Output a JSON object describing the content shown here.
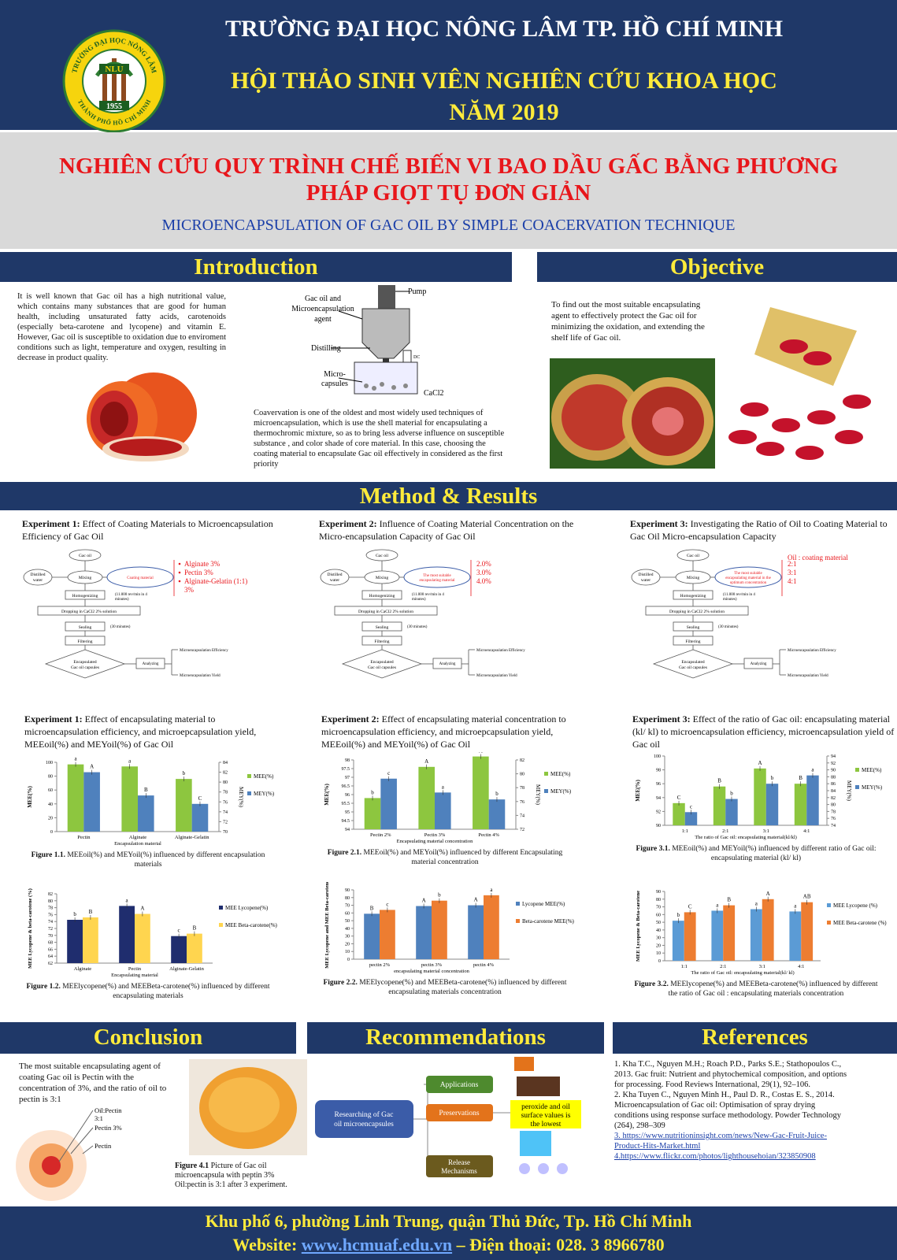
{
  "header": {
    "university": "TRƯỜNG ĐẠI HỌC NÔNG LÂM TP. HỒ CHÍ MINH",
    "event_line1": "HỘI THẢO SINH VIÊN NGHIÊN CỨU KHOA HỌC",
    "event_line2": "NĂM 2019"
  },
  "logo": {
    "top": "TRƯỜNG ĐẠI HỌC NÔNG LÂM",
    "bottom": "THÀNH PHỐ HỒ CHÍ MINH",
    "abbr": "NLU",
    "year": "1955"
  },
  "title": {
    "line1": "NGHIÊN CỨU QUY TRÌNH CHẾ BIẾN VI BAO DẦU GẤC BẰNG PHƯƠNG",
    "line2": "PHÁP GIỌT TỤ ĐƠN GIẢN",
    "subtitle": "MICROENCAPSULATION OF GAC OIL BY SIMPLE COACERVATION TECHNIQUE"
  },
  "introduction": {
    "heading": "Introduction",
    "paragraph1": "It is well known that Gac oil has a high nutritional value, which contains many substances that are good for human health, including unsaturated fatty acids, carotenoids (especially beta-carotene and lycopene) and vitamin E. However, Gac oil is susceptible to oxidation due to enviroment conditions such as light, temperature and oxygen, resulting in decrease in product quality.",
    "paragraph2": "Coavervation  is one of the oldest and most widely used techniques of microencapsulation, which is use the shell material for encapsulating a thermochromic  mixture, so as to bring less adverse influence on susceptible substance , and color shade of core material. In this case, choosing the coating material to encapsulate Gac oil effectively in considered as the first priority",
    "apparatus": {
      "pump": "Pump",
      "feed": [
        "Gac oil and",
        "Microencapsulation",
        "agent"
      ],
      "distilling": "Distilling",
      "capsules": [
        "Micro-",
        "capsules"
      ],
      "dc": "DC",
      "cacl2": "CaCl2"
    }
  },
  "objective": {
    "heading": "Objective",
    "text": "To find out the most suitable encapsulating agent to effectively protect the Gac oil for minimizing the oxidation, and extending the shelf life of Gac oil."
  },
  "method": {
    "heading": "Method & Results"
  },
  "flowchart": {
    "gac_oil": "Gac oil",
    "distilled_water": [
      "Distilled",
      "water"
    ],
    "mixing": "Mixing",
    "homogenizing": "Homogenizing",
    "speed_note": [
      "(11.000 rev/min in 4",
      "minutes)"
    ],
    "dropping": "Dropping in CaCl2 2% solution",
    "sealing": "Sealing",
    "sealing_note": "(30 minutes)",
    "filtering": "Filtering",
    "capsules": [
      "Encapsulated",
      "Gac oil capsules"
    ],
    "analyzing": "Analyzing",
    "efficiency": "Microencapsulation Efficiency",
    "yield": "Microencapsulation Yield"
  },
  "experiments": [
    {
      "label": "Experiment 1:",
      "title": "Effect of Coating Materials to Microencapsulation Efficiency of Gac Oil",
      "center": [
        "Coating material"
      ],
      "options": [
        "Alginate 3%",
        "Pectin 3%",
        "Alginate-Gelatin (1:1)",
        "3%"
      ],
      "results_title": "Effect of encapsulating material to microencapsulation efficiency, and microepcapsulation yield, MEEoil(%) and MEYoil(%) of Gac Oil"
    },
    {
      "label": "Experiment 2:",
      "title": "Influence of Coating Material Concentration on the Micro-encapsulation Capacity of Gac Oil",
      "center": [
        "The most suitable",
        "encapsulating material"
      ],
      "options": [
        "2.0%",
        "3.0%",
        "4.0%"
      ],
      "results_title": "Effect of encapsulating material concentration to microencapsulation efficiency, and microepcapsulation yield, MEEoil(%) and MEYoil(%) of Gac Oil"
    },
    {
      "label": "Experiment 3:",
      "title": "Investigating the Ratio of  Oil to Coating Material to Gac Oil Micro-encapsulation Capacity",
      "center": [
        "The most suitable",
        "encapsulating material in the",
        "optimum concentration"
      ],
      "options_title": "Oil : coating material",
      "options": [
        "2:1",
        "3:1",
        "4:1"
      ],
      "results_title": "Effect of the ratio of Gac oil: encapsulating material (kl/ kl) to microencapsulation efficiency, microencapsulation yield of Gac oil"
    }
  ],
  "charts": [
    {
      "type": "bar",
      "figure": "Figure 1.1.",
      "caption": "MEEoil(%) and MEYoil(%) influenced by different encapsulation materials",
      "categories": [
        "Pectin",
        "Alginate",
        "Alginate-Gelatin"
      ],
      "xlabel": "Encapsulation material",
      "ylabel": "MEE(%)",
      "y2label": "MEY(%)",
      "ylim": [
        0,
        100
      ],
      "yticks": [
        0,
        20,
        40,
        60,
        80,
        100
      ],
      "y2lim": [
        70,
        84
      ],
      "y2ticks": [
        70,
        72,
        74,
        76,
        78,
        80,
        82,
        84
      ],
      "series": [
        {
          "name": "MEE(%)",
          "color": "#8dc63f",
          "values": [
            97,
            94,
            76
          ],
          "letters": [
            "a",
            "a",
            "b"
          ]
        },
        {
          "name": "MEY(%)",
          "color": "#4f81bd",
          "axis": "y2",
          "values": [
            82,
            77.3,
            75.6
          ],
          "letters": [
            "A",
            "B",
            "C"
          ]
        }
      ]
    },
    {
      "type": "bar",
      "figure": "Figure 2.1.",
      "caption": "MEEoil(%) and MEYoil(%) influenced by different Encapsulating material concentration",
      "categories": [
        "Pectin 2%",
        "Pectin 3%",
        "Pectin 4%"
      ],
      "xlabel": "Encapsulating material concentration",
      "ylabel": "MEE(%)",
      "y2label": "MEY(%)",
      "ylim": [
        94,
        98
      ],
      "yticks": [
        94,
        94.5,
        95,
        95.5,
        96,
        96.5,
        97,
        97.5,
        98
      ],
      "y2lim": [
        72,
        82
      ],
      "y2ticks": [
        72,
        74,
        76,
        78,
        80,
        82
      ],
      "series": [
        {
          "name": "MEE(%)",
          "color": "#8dc63f",
          "values": [
            95.8,
            97.6,
            98.2
          ],
          "letters": [
            "b",
            "A",
            "A"
          ]
        },
        {
          "name": "MEY(%)",
          "color": "#4f81bd",
          "axis": "y2",
          "values": [
            79.3,
            77.3,
            76.3
          ],
          "letters": [
            "c",
            "a",
            "b"
          ]
        }
      ]
    },
    {
      "type": "bar",
      "figure": "Figure 3.1.",
      "caption": "MEEoil(%) and MEYoil(%) influenced by different ratio of Gac oil: encapsulating material (kl/ kl)",
      "categories": [
        "1:1",
        "2:1",
        "3:1",
        "4:1"
      ],
      "xlabel": "The ratio of Gac oil: encapsulating material(kl/kl)",
      "ylabel": "MEE(%)",
      "y2label": "MEY(%)",
      "ylim": [
        90,
        100
      ],
      "yticks": [
        90,
        92,
        94,
        96,
        98,
        100
      ],
      "y2lim": [
        74,
        94
      ],
      "y2ticks": [
        74,
        76,
        78,
        80,
        82,
        84,
        86,
        88,
        90,
        92,
        94
      ],
      "series": [
        {
          "name": "MEE(%)",
          "color": "#8dc63f",
          "values": [
            93.2,
            95.6,
            98.2,
            96
          ],
          "letters": [
            "C",
            "B",
            "A",
            "B"
          ]
        },
        {
          "name": "MEY(%)",
          "color": "#4f81bd",
          "axis": "y2",
          "values": [
            77.8,
            81.6,
            86,
            88.4
          ],
          "letters": [
            "c",
            "b",
            "b",
            "a"
          ]
        }
      ]
    },
    {
      "type": "bar",
      "figure": "Figure 1.2.",
      "caption": "MEElycopene(%) and MEEBeta-carotene(%) influenced by different encapsulating materials",
      "categories": [
        "Alginate",
        "Pectin",
        "Alginate-Gelatin"
      ],
      "xlabel": "Encapsulating material",
      "ylabel": "MEE Lycopene & beta-carotene (%)",
      "ylim": [
        62,
        82
      ],
      "yticks": [
        62,
        64,
        66,
        68,
        70,
        72,
        74,
        76,
        78,
        80,
        82
      ],
      "series": [
        {
          "name": "MEE Lycopene(%)",
          "color": "#1f2d6e",
          "values": [
            74.5,
            78.5,
            69.8
          ],
          "letters": [
            "b",
            "a",
            "c"
          ]
        },
        {
          "name": "MEE Beta-carotene(%)",
          "color": "#ffd54f",
          "values": [
            75.2,
            76.2,
            70.5
          ],
          "letters": [
            "B",
            "A",
            "B"
          ]
        }
      ]
    },
    {
      "type": "bar",
      "figure": "Figure 2.2.",
      "caption": "MEElycopene(%) and MEEBeta-carotene(%) influenced by different encapsulating materials concentration",
      "categories": [
        "pectin 2%",
        "pectin 3%",
        "pectin 4%"
      ],
      "xlabel": "encapsulating material concentration",
      "ylabel": "MEE Lycopene and MEE Beta-carotene",
      "ylim": [
        0,
        90
      ],
      "yticks": [
        0,
        10,
        20,
        30,
        40,
        50,
        60,
        70,
        80,
        90
      ],
      "series": [
        {
          "name": "Lycopene MEE(%)",
          "color": "#4f81bd",
          "values": [
            59,
            69,
            70
          ],
          "letters": [
            "B",
            "A",
            "A"
          ]
        },
        {
          "name": "Beta-carotene MEE(%)",
          "color": "#ed7d31",
          "values": [
            64,
            76,
            83
          ],
          "letters": [
            "c",
            "b",
            "a"
          ]
        }
      ]
    },
    {
      "type": "bar",
      "figure": "Figure 3.2.",
      "caption": "MEElycopene(%) and MEEBeta-carotene(%) influenced by different the ratio of Gac oil : encapsulating materials concentration",
      "categories": [
        "1:1",
        "2:1",
        "3:1",
        "4:1"
      ],
      "xlabel": "The ratio of Gac oil: encapsulating material(kl/ kl)",
      "ylabel": "MEE Lycopene & Beta-carotene",
      "ylim": [
        0,
        90
      ],
      "yticks": [
        0,
        10,
        20,
        30,
        40,
        50,
        60,
        70,
        80,
        90
      ],
      "series": [
        {
          "name": "MEE Lycopene (%)",
          "color": "#5b9bd5",
          "values": [
            52,
            65,
            67,
            64
          ],
          "letters": [
            "b",
            "a",
            "a",
            "a"
          ]
        },
        {
          "name": "MEE Beta-carotene (%)",
          "color": "#ed7d31",
          "values": [
            63,
            72,
            80,
            76
          ],
          "letters": [
            "C",
            "B",
            "A",
            "AB"
          ]
        }
      ]
    }
  ],
  "conclusion": {
    "heading": "Conclusion",
    "text": "The most suitable encapsulating agent of coating  Gac oil is Pectin with the concentration of 3%, and the ratio of oil to pectin is 3:1",
    "rings": [
      "Oil:Pectin",
      "3:1",
      "Pectin 3%",
      "Pectin"
    ],
    "figure": "Figure 4.1",
    "figure_caption": "Picture of Gac oil microencapsula with peptin 3% Oil:pectin is 3:1 after 3 experiment."
  },
  "recommendations": {
    "heading": "Recommendations",
    "root": [
      "Researching of Gac",
      "oil microencapsules"
    ],
    "applications": "Applications",
    "preservations": "Preservations",
    "release": [
      "Release",
      "Mechanisms"
    ],
    "result": [
      "peroxide and oil",
      "surface values is",
      "the lowest"
    ]
  },
  "references": {
    "heading": "References",
    "items": [
      "1. Kha T.C., Nguyen M.H.; Roach P.D., Parks S.E.; Stathopoulos C., 2013. Gac fruit: Nutrient and phytochemical composition, and options for processing. Food Reviews International, 29(1), 92–106.",
      "2. Kha Tuyen C., Nguyen Minh H., Paul D. R., Costas E. S., 2014. Microencapsulation of Gac oil: Optimisation of spray drying conditions using response surface methodology. Powder Technology (264), 298–309"
    ],
    "links": [
      "3. https://www.nutritioninsight.com/news/New-Gac-Fruit-Juice-Product-Hits-Market.html",
      "4.https://www.flickr.com/photos/lighthousehoian/323850908"
    ]
  },
  "footer": {
    "address": "Khu phố 6, phường Linh Trung, quận Thủ Đức, Tp. Hồ Chí Minh",
    "website_label": "Website:",
    "website": "www.hcmuaf.edu.vn",
    "phone": "– Điện thoại: 028. 3 8966780"
  }
}
